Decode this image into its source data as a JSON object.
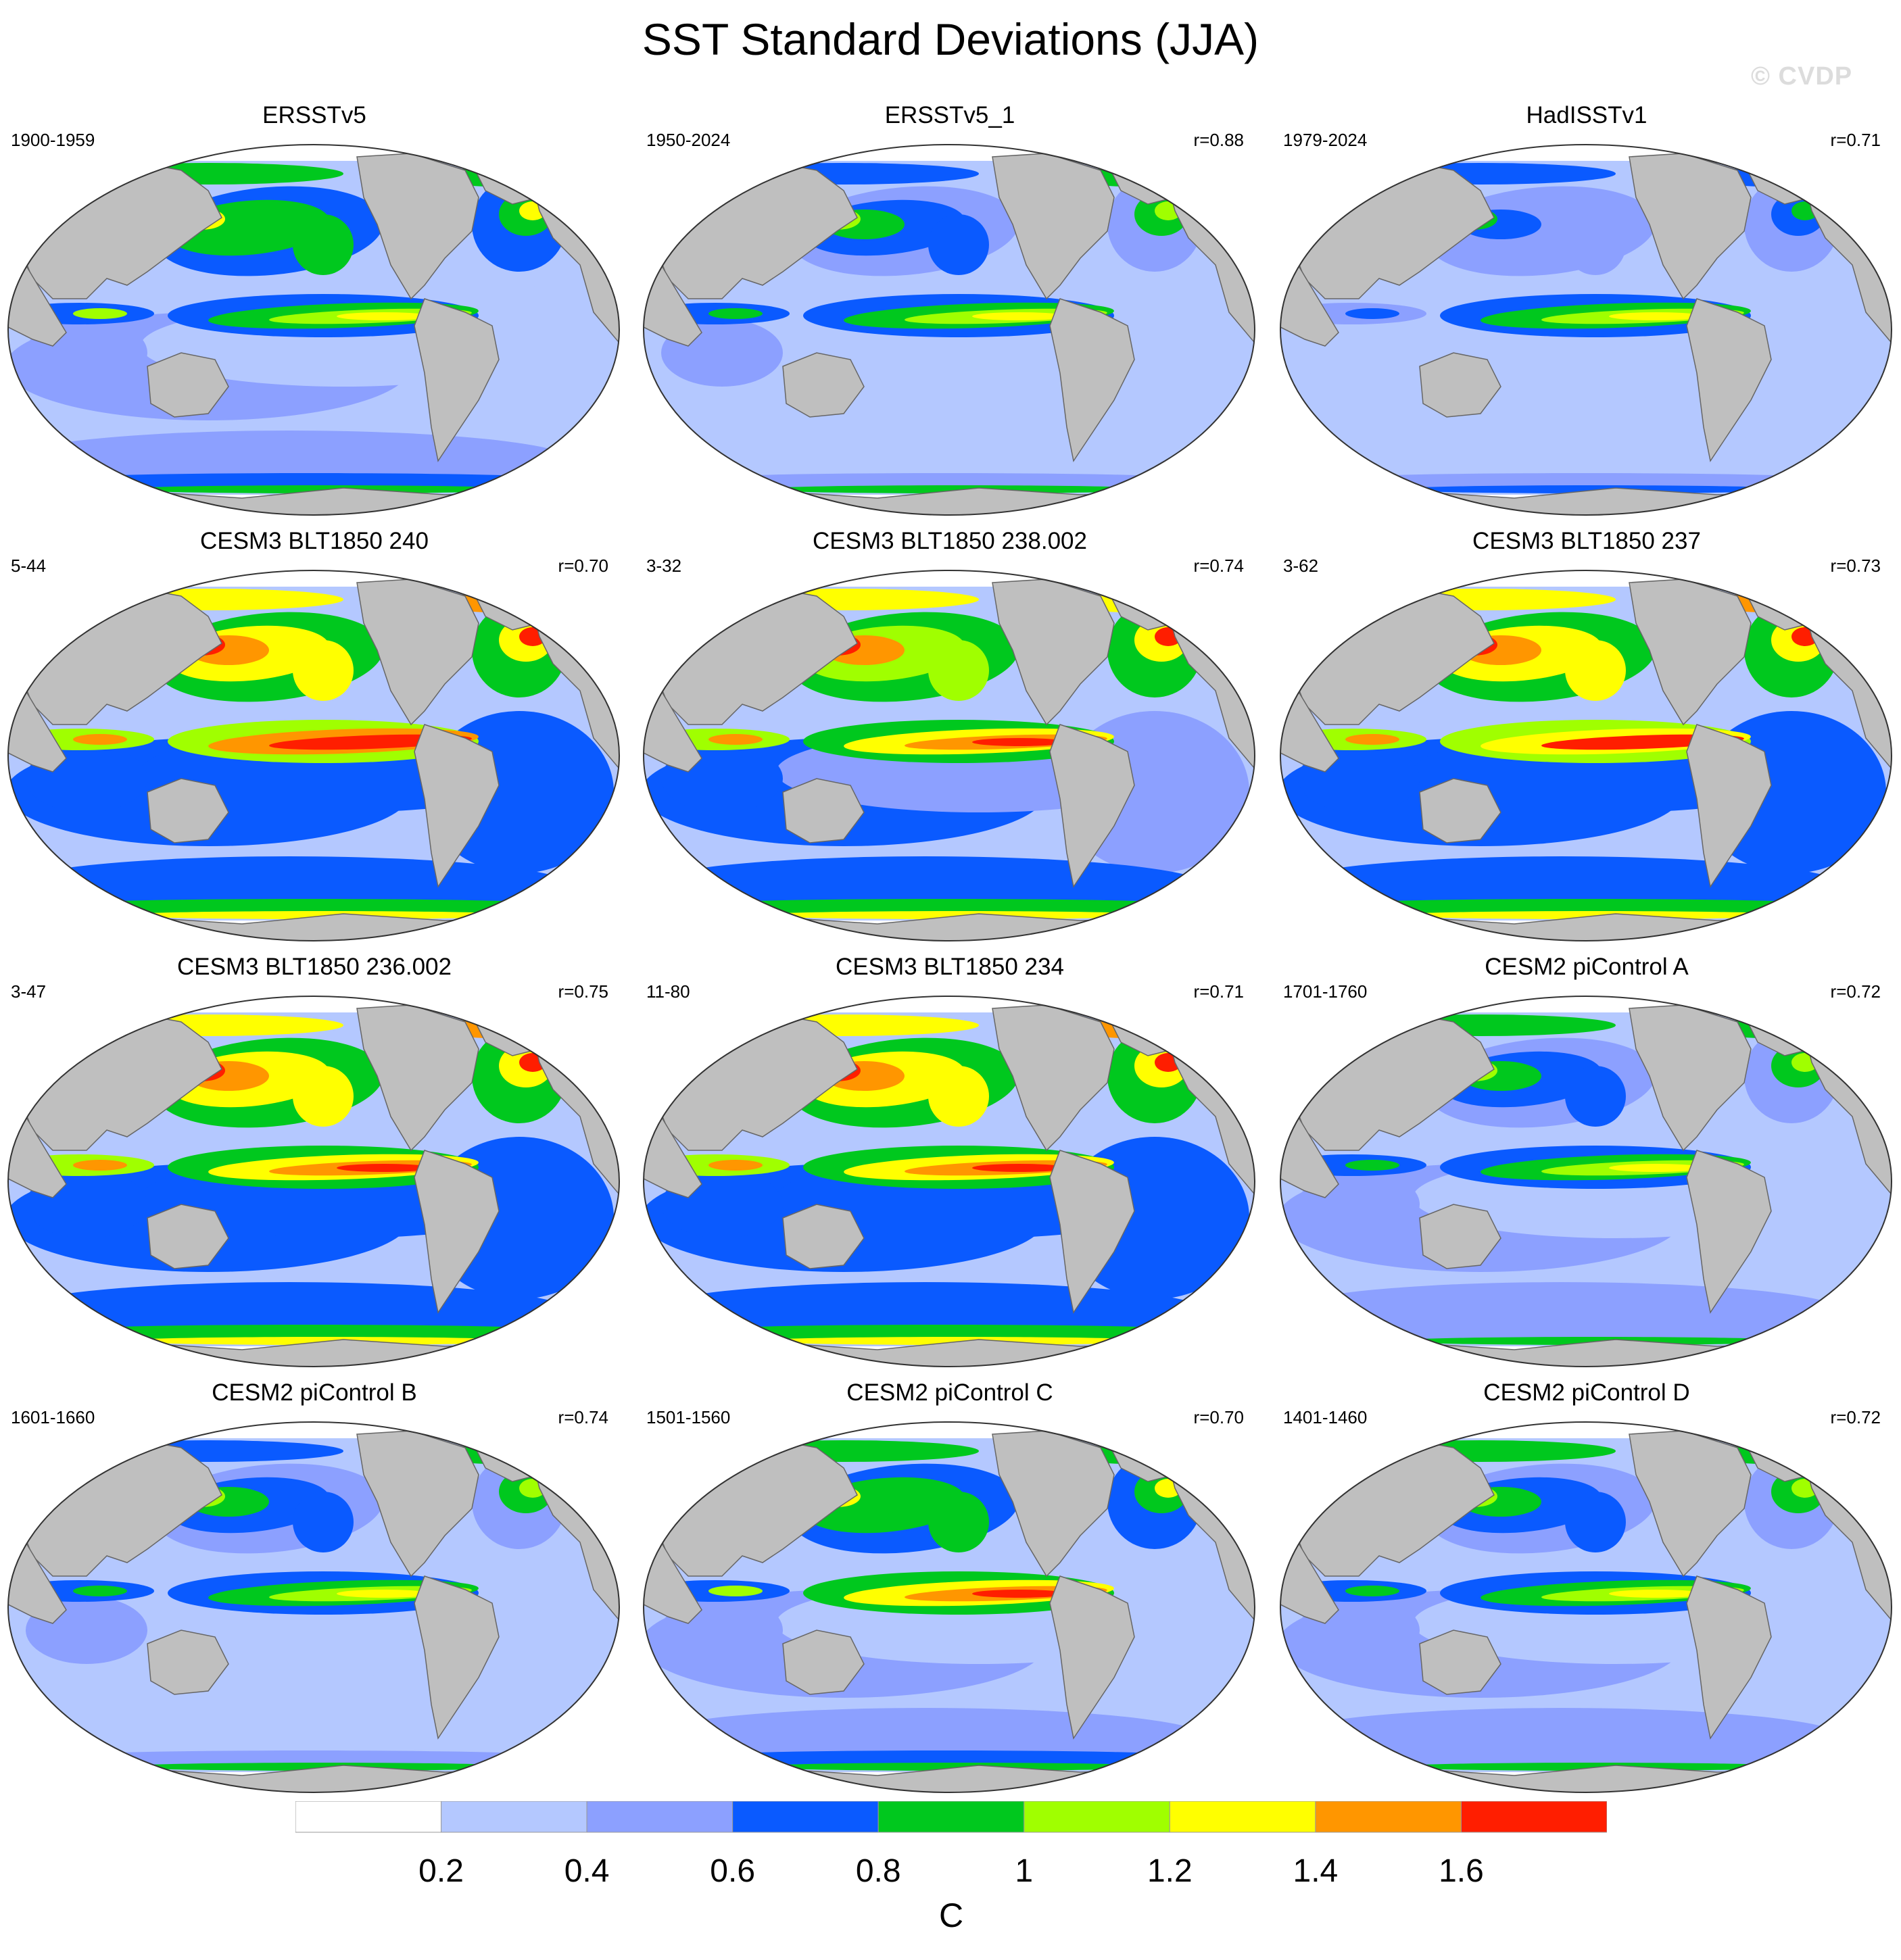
{
  "title": "SST Standard Deviations (JJA)",
  "watermark": "© CVDP",
  "panels": [
    {
      "name": "ERSSTv5",
      "period": "1900-1959",
      "r": "",
      "intensity": 0.95,
      "tropics": 1.0
    },
    {
      "name": "ERSSTv5_1",
      "period": "1950-2024",
      "r": "r=0.88",
      "intensity": 0.85,
      "tropics": 1.0
    },
    {
      "name": "HadISSTv1",
      "period": "1979-2024",
      "r": "r=0.71",
      "intensity": 0.7,
      "tropics": 0.9
    },
    {
      "name": "CESM3 BLT1850 240",
      "period": "5-44",
      "r": "r=0.70",
      "intensity": 1.45,
      "tropics": 1.5
    },
    {
      "name": "CESM3 BLT1850 238.002",
      "period": "3-32",
      "r": "r=0.74",
      "intensity": 1.4,
      "tropics": 1.3
    },
    {
      "name": "CESM3 BLT1850 237",
      "period": "3-62",
      "r": "r=0.73",
      "intensity": 1.45,
      "tropics": 1.45
    },
    {
      "name": "CESM3 BLT1850 236.002",
      "period": "3-47",
      "r": "r=0.75",
      "intensity": 1.45,
      "tropics": 1.35
    },
    {
      "name": "CESM3 BLT1850 234",
      "period": "11-80",
      "r": "r=0.71",
      "intensity": 1.45,
      "tropics": 1.35
    },
    {
      "name": "CESM2 piControl A",
      "period": "1701-1760",
      "r": "r=0.72",
      "intensity": 0.9,
      "tropics": 1.0
    },
    {
      "name": "CESM2 piControl B",
      "period": "1601-1660",
      "r": "r=0.74",
      "intensity": 0.85,
      "tropics": 1.0
    },
    {
      "name": "CESM2 piControl C",
      "period": "1501-1560",
      "r": "r=0.70",
      "intensity": 0.95,
      "tropics": 1.35
    },
    {
      "name": "CESM2 piControl D",
      "period": "1401-1460",
      "r": "r=0.72",
      "intensity": 0.9,
      "tropics": 0.95
    }
  ],
  "colorbar": {
    "colors": [
      "#ffffff",
      "#b4c8ff",
      "#8ca0ff",
      "#0a5aff",
      "#00c81e",
      "#a0ff00",
      "#ffff00",
      "#ff9600",
      "#ff1e00"
    ],
    "levels": [
      "0.2",
      "0.4",
      "0.6",
      "0.8",
      "1",
      "1.2",
      "1.4",
      "1.6"
    ],
    "units": "C"
  },
  "land_color": "#bfbfbf"
}
